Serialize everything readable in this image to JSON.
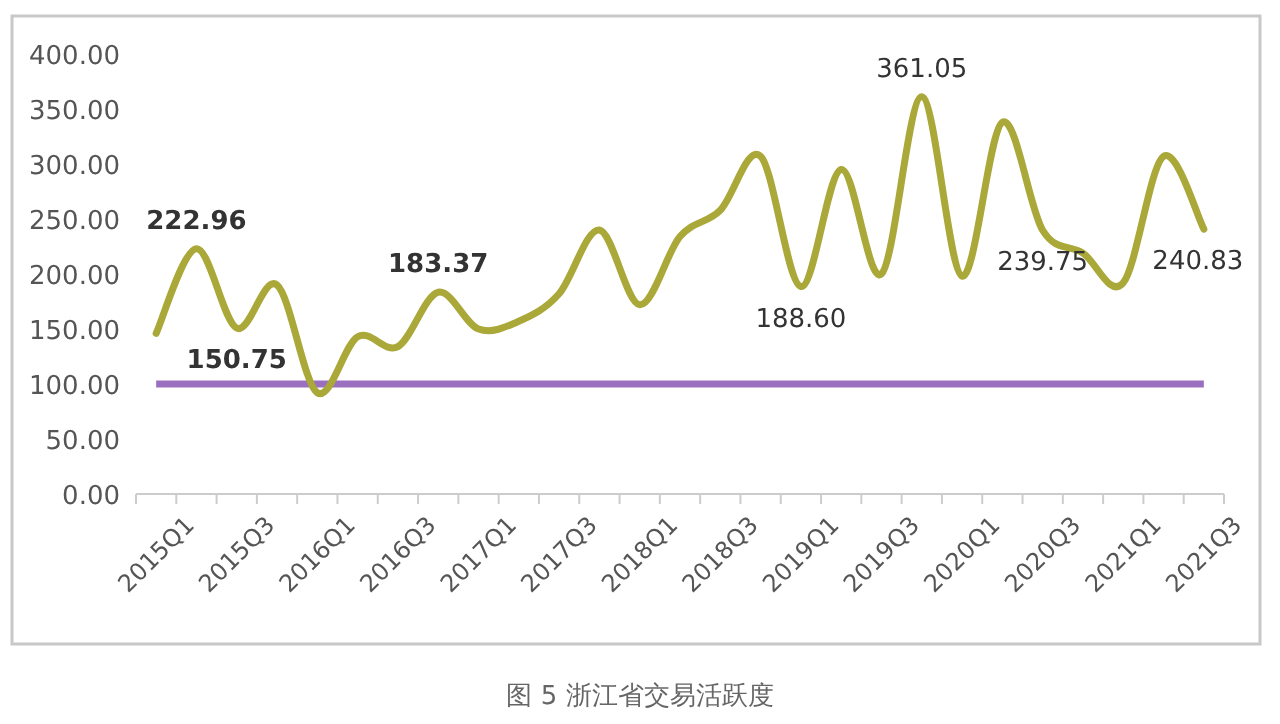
{
  "chart_data": {
    "type": "line",
    "title": "图 5  浙江省交易活跃度",
    "categories": [
      "2015Q1",
      null,
      "2015Q3",
      null,
      "2016Q1",
      null,
      "2016Q3",
      null,
      "2017Q1",
      null,
      "2017Q3",
      null,
      "2018Q1",
      null,
      "2018Q3",
      null,
      "2019Q1",
      null,
      "2019Q3",
      null,
      "2020Q1",
      null,
      "2020Q3",
      null,
      "2021Q1",
      null,
      "2021Q3"
    ],
    "values": [
      146,
      222.96,
      150.75,
      190,
      92,
      143,
      134,
      183.37,
      150,
      157,
      182,
      240,
      172,
      234,
      258,
      307,
      188.6,
      295,
      200,
      361.05,
      198,
      338,
      239.75,
      219,
      192,
      307,
      240.83
    ],
    "value_labels": [
      null,
      "222.96",
      "150.75",
      null,
      null,
      null,
      null,
      "183.37",
      null,
      null,
      null,
      null,
      null,
      null,
      null,
      null,
      "188.60",
      null,
      null,
      "361.05",
      null,
      null,
      "239.75",
      null,
      null,
      null,
      "240.83"
    ],
    "color": "#a9a838",
    "ylim": [
      0,
      400
    ],
    "yticks": [
      {
        "value": 0,
        "label": "0.00"
      },
      {
        "value": 50,
        "label": "50.00"
      },
      {
        "value": 100,
        "label": "100.00"
      },
      {
        "value": 150,
        "label": "150.00"
      },
      {
        "value": 200,
        "label": "200.00"
      },
      {
        "value": 250,
        "label": "250.00"
      },
      {
        "value": 300,
        "label": "300.00"
      },
      {
        "value": 350,
        "label": "350.00"
      },
      {
        "value": 400,
        "label": "400.00"
      }
    ],
    "ref_lines": [
      {
        "axis": "y",
        "value": 100,
        "color": "#9b6fc0"
      }
    ]
  }
}
